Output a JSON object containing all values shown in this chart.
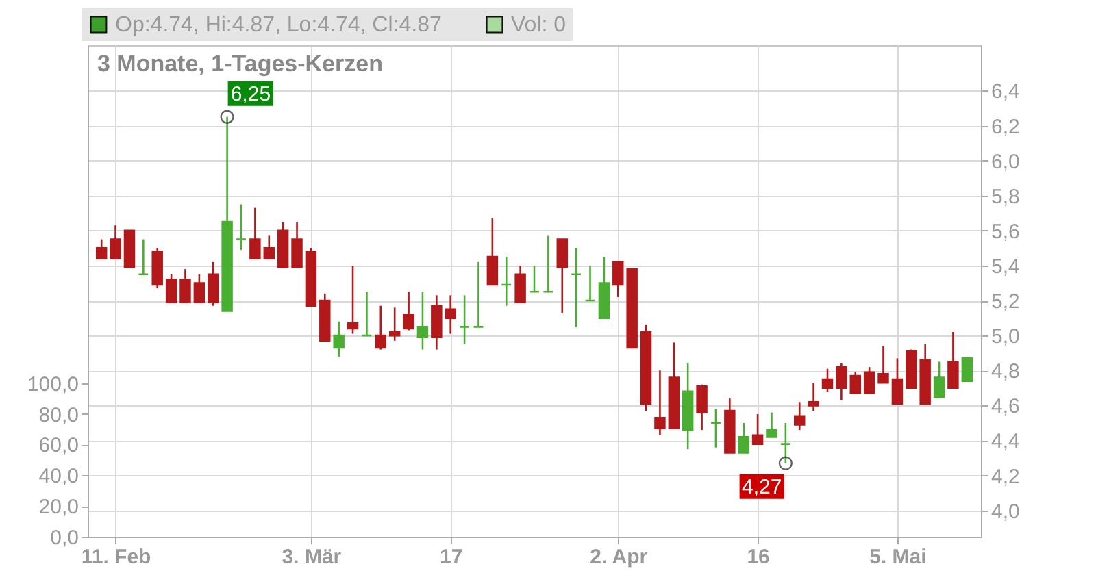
{
  "chart_data": {
    "type": "candlestick",
    "title": "3 Monate, 1-Tages-Kerzen",
    "categories": [
      null,
      "11. Feb",
      null,
      null,
      null,
      null,
      null,
      null,
      null,
      null,
      null,
      null,
      null,
      null,
      null,
      "3. Mär",
      null,
      null,
      null,
      null,
      null,
      null,
      null,
      null,
      null,
      "17",
      null,
      null,
      null,
      null,
      null,
      null,
      null,
      null,
      null,
      null,
      null,
      "2. Apr",
      null,
      null,
      null,
      null,
      null,
      null,
      null,
      null,
      null,
      "16",
      null,
      null,
      null,
      null,
      null,
      null,
      null,
      null,
      null,
      "5. Mai",
      null,
      null,
      null,
      null,
      null
    ],
    "ylim": [
      3.85,
      6.66
    ],
    "yticks": [
      {
        "value": 4.0,
        "label": "4,0"
      },
      {
        "value": 4.2,
        "label": "4,2"
      },
      {
        "value": 4.4,
        "label": "4,4"
      },
      {
        "value": 4.6,
        "label": "4,6"
      },
      {
        "value": 4.8,
        "label": "4,8"
      },
      {
        "value": 5.0,
        "label": "5,0"
      },
      {
        "value": 5.2,
        "label": "5,2"
      },
      {
        "value": 5.4,
        "label": "5,4"
      },
      {
        "value": 5.6,
        "label": "5,6"
      },
      {
        "value": 5.8,
        "label": "5,8"
      },
      {
        "value": 6.0,
        "label": "6,0"
      },
      {
        "value": 6.2,
        "label": "6,2"
      },
      {
        "value": 6.4,
        "label": "6,4"
      }
    ],
    "y2lim": [
      0,
      320
    ],
    "y2ticks": [
      {
        "value": 0,
        "label": "0,0"
      },
      {
        "value": 20,
        "label": "20,0"
      },
      {
        "value": 40,
        "label": "40,0"
      },
      {
        "value": 60,
        "label": "60,0"
      },
      {
        "value": 80,
        "label": "80,0"
      },
      {
        "value": 100,
        "label": "100,0"
      }
    ],
    "grid": true,
    "legend": "top left",
    "series": [
      {
        "type": "candlestick",
        "name": "Op:4.74, Hi:4.87, Lo:4.74, Cl:4.87",
        "color": "#3f9f2c",
        "colors": [
          "#b3181a",
          "#b3181a",
          "#b3181a",
          "#4aae33",
          "#b3181a",
          "#b3181a",
          "#b3181a",
          "#b3181a",
          "#b3181a",
          "#4aae33",
          "#4aae33",
          "#b3181a",
          "#b3181a",
          "#b3181a",
          "#b3181a",
          "#b3181a",
          "#b3181a",
          "#4aae33",
          "#b3181a",
          "#4aae33",
          "#b3181a",
          "#b3181a",
          "#b3181a",
          "#4aae33",
          "#b3181a",
          "#b3181a",
          "#4aae33",
          "#4aae33",
          "#b3181a",
          "#4aae33",
          "#b3181a",
          "#4aae33",
          "#4aae33",
          "#b3181a",
          "#4aae33",
          "#4aae33",
          "#4aae33",
          "#b3181a",
          "#b3181a",
          "#b3181a",
          "#b3181a",
          "#b3181a",
          "#4aae33",
          "#b3181a",
          "#4aae33",
          "#b3181a",
          "#4aae33",
          "#b3181a",
          "#4aae33",
          "#4aae33",
          "#b3181a",
          "#b3181a",
          "#b3181a",
          "#b3181a",
          "#b3181a",
          "#b3181a",
          "#b3181a",
          "#b3181a",
          "#b3181a",
          "#b3181a",
          "#4aae33",
          "#b3181a",
          "#4aae33"
        ],
        "ohlc": [
          [
            5.5,
            5.55,
            5.44,
            5.44
          ],
          [
            5.55,
            5.63,
            5.44,
            5.44
          ],
          [
            5.6,
            5.6,
            5.39,
            5.39
          ],
          [
            5.35,
            5.55,
            5.35,
            5.35
          ],
          [
            5.48,
            5.5,
            5.27,
            5.29
          ],
          [
            5.32,
            5.35,
            5.19,
            5.19
          ],
          [
            5.32,
            5.38,
            5.19,
            5.19
          ],
          [
            5.3,
            5.35,
            5.19,
            5.19
          ],
          [
            5.35,
            5.42,
            5.17,
            5.19
          ],
          [
            5.14,
            6.25,
            5.14,
            5.65
          ],
          [
            5.55,
            5.75,
            5.49,
            5.55
          ],
          [
            5.55,
            5.73,
            5.44,
            5.44
          ],
          [
            5.5,
            5.57,
            5.44,
            5.44
          ],
          [
            5.6,
            5.65,
            5.39,
            5.39
          ],
          [
            5.55,
            5.65,
            5.39,
            5.39
          ],
          [
            5.48,
            5.5,
            5.17,
            5.17
          ],
          [
            5.2,
            5.24,
            4.97,
            4.97
          ],
          [
            4.93,
            5.08,
            4.88,
            5.0
          ],
          [
            5.07,
            5.4,
            5.01,
            5.04
          ],
          [
            5.0,
            5.25,
            5.0,
            5.0
          ],
          [
            5.0,
            5.17,
            4.92,
            4.93
          ],
          [
            5.02,
            5.16,
            4.97,
            5.0
          ],
          [
            5.12,
            5.25,
            5.03,
            5.04
          ],
          [
            4.99,
            5.25,
            4.92,
            5.05
          ],
          [
            5.17,
            5.23,
            4.92,
            4.99
          ],
          [
            5.15,
            5.23,
            5.01,
            5.1
          ],
          [
            5.05,
            5.23,
            4.95,
            5.05
          ],
          [
            5.05,
            5.42,
            5.05,
            5.05
          ],
          [
            5.45,
            5.67,
            5.29,
            5.29
          ],
          [
            5.29,
            5.45,
            5.17,
            5.29
          ],
          [
            5.35,
            5.4,
            5.19,
            5.19
          ],
          [
            5.25,
            5.4,
            5.25,
            5.25
          ],
          [
            5.25,
            5.57,
            5.25,
            5.25
          ],
          [
            5.55,
            5.55,
            5.13,
            5.39
          ],
          [
            5.35,
            5.5,
            5.05,
            5.35
          ],
          [
            5.2,
            5.4,
            5.2,
            5.2
          ],
          [
            5.1,
            5.45,
            5.1,
            5.3
          ],
          [
            5.42,
            5.42,
            5.22,
            5.29
          ],
          [
            5.38,
            5.38,
            4.93,
            4.93
          ],
          [
            5.02,
            5.06,
            4.57,
            4.61
          ],
          [
            4.53,
            4.8,
            4.43,
            4.47
          ],
          [
            4.76,
            4.96,
            4.47,
            4.47
          ],
          [
            4.46,
            4.84,
            4.35,
            4.68
          ],
          [
            4.71,
            4.72,
            4.46,
            4.56
          ],
          [
            4.5,
            4.58,
            4.36,
            4.5
          ],
          [
            4.57,
            4.64,
            4.33,
            4.33
          ],
          [
            4.33,
            4.5,
            4.33,
            4.42
          ],
          [
            4.43,
            4.55,
            4.38,
            4.38
          ],
          [
            4.42,
            4.56,
            4.42,
            4.46
          ],
          [
            4.38,
            4.5,
            4.27,
            4.38
          ],
          [
            4.54,
            4.62,
            4.46,
            4.49
          ],
          [
            4.62,
            4.73,
            4.57,
            4.6
          ],
          [
            4.75,
            4.81,
            4.68,
            4.7
          ],
          [
            4.82,
            4.84,
            4.63,
            4.7
          ],
          [
            4.77,
            4.79,
            4.67,
            4.67
          ],
          [
            4.79,
            4.82,
            4.67,
            4.67
          ],
          [
            4.78,
            4.94,
            4.73,
            4.73
          ],
          [
            4.75,
            4.87,
            4.61,
            4.61
          ],
          [
            4.91,
            4.92,
            4.7,
            4.7
          ],
          [
            4.86,
            4.95,
            4.61,
            4.61
          ],
          [
            4.65,
            4.85,
            4.64,
            4.76
          ],
          [
            4.85,
            5.02,
            4.7,
            4.7
          ],
          [
            4.74,
            4.87,
            4.74,
            4.87
          ]
        ]
      },
      {
        "type": "bar",
        "axis": "y2",
        "name": "Vol: 0",
        "color": "#a9dba0",
        "values": [
          0,
          0,
          0,
          0,
          0,
          0,
          0,
          0,
          0,
          0,
          0,
          0,
          0,
          0,
          0,
          0,
          0,
          0,
          0,
          0,
          0,
          0,
          0,
          0,
          0,
          0,
          0,
          0,
          0,
          0,
          0,
          0,
          0,
          0,
          0,
          0,
          0,
          0,
          0,
          0,
          0,
          0,
          0,
          0,
          0,
          0,
          0,
          0,
          0,
          0,
          0,
          0,
          0,
          0,
          0,
          0,
          0,
          0,
          0,
          0,
          0,
          0,
          0
        ]
      }
    ],
    "annotations": [
      "6,25",
      "4,27"
    ]
  }
}
